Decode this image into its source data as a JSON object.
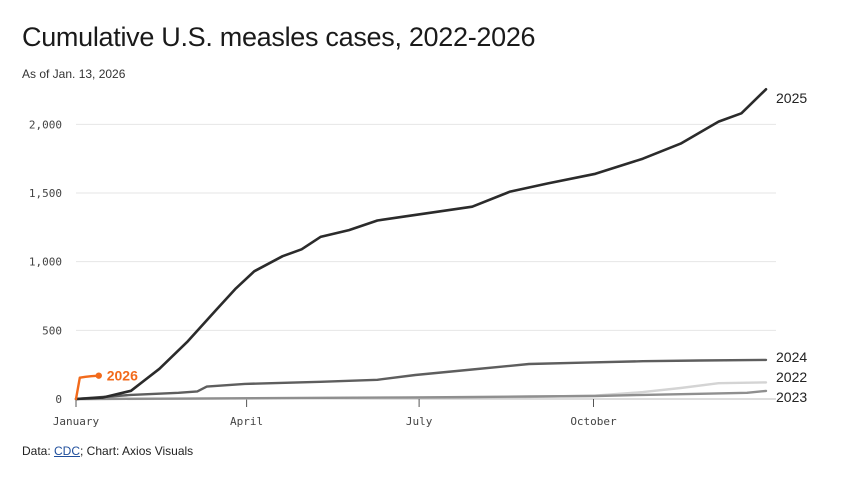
{
  "header": {
    "title": "Cumulative U.S. measles cases, 2022-2026",
    "subtitle": "As of Jan. 13, 2026"
  },
  "footer": {
    "data_prefix": "Data: ",
    "source_link": "CDC",
    "credit": "; Chart: Axios Visuals"
  },
  "chart_data": {
    "type": "line",
    "title": "Cumulative U.S. measles cases, 2022-2026",
    "subtitle": "As of Jan. 13, 2026",
    "xlabel": "",
    "ylabel": "",
    "x_unit": "day of year",
    "xlim": [
      1,
      365
    ],
    "ylim": [
      0,
      2250
    ],
    "yticks": [
      0,
      500,
      1000,
      1500,
      2000
    ],
    "ytick_labels": [
      "0",
      "500",
      "1,000",
      "1,500",
      "2,000"
    ],
    "xticks": [
      1,
      91,
      182,
      274
    ],
    "xtick_labels": [
      "January",
      "April",
      "July",
      "October"
    ],
    "grid": true,
    "colors": {
      "2025": "#2b2b2b",
      "2024": "#5e5e5e",
      "2023": "#8f8f8f",
      "2022": "#d4d4d4",
      "2026": "#f26a1b",
      "grid": "#e6e6e6",
      "axis": "#bbbbbb"
    },
    "series": [
      {
        "name": "2022",
        "x": [
          1,
          60,
          120,
          180,
          240,
          275,
          300,
          320,
          340,
          365
        ],
        "y": [
          0,
          2,
          5,
          10,
          15,
          25,
          50,
          80,
          115,
          121
        ]
      },
      {
        "name": "2023",
        "x": [
          1,
          60,
          120,
          180,
          240,
          275,
          300,
          330,
          355,
          365
        ],
        "y": [
          0,
          3,
          8,
          12,
          18,
          22,
          30,
          38,
          45,
          59
        ]
      },
      {
        "name": "2024",
        "x": [
          1,
          30,
          55,
          65,
          70,
          90,
          130,
          160,
          180,
          210,
          240,
          270,
          300,
          330,
          365
        ],
        "y": [
          0,
          30,
          45,
          55,
          90,
          110,
          125,
          140,
          175,
          215,
          255,
          265,
          275,
          280,
          285
        ]
      },
      {
        "name": "2025",
        "x": [
          1,
          15,
          30,
          45,
          60,
          75,
          85,
          95,
          110,
          120,
          130,
          145,
          160,
          175,
          190,
          210,
          230,
          250,
          275,
          300,
          320,
          340,
          352,
          365
        ],
        "y": [
          0,
          10,
          60,
          220,
          420,
          650,
          800,
          930,
          1040,
          1090,
          1180,
          1230,
          1300,
          1330,
          1360,
          1400,
          1510,
          1570,
          1640,
          1750,
          1860,
          2020,
          2080,
          2255
        ]
      },
      {
        "name": "2026",
        "x": [
          1,
          3,
          6,
          9,
          13
        ],
        "y": [
          0,
          155,
          162,
          166,
          170
        ]
      }
    ]
  }
}
